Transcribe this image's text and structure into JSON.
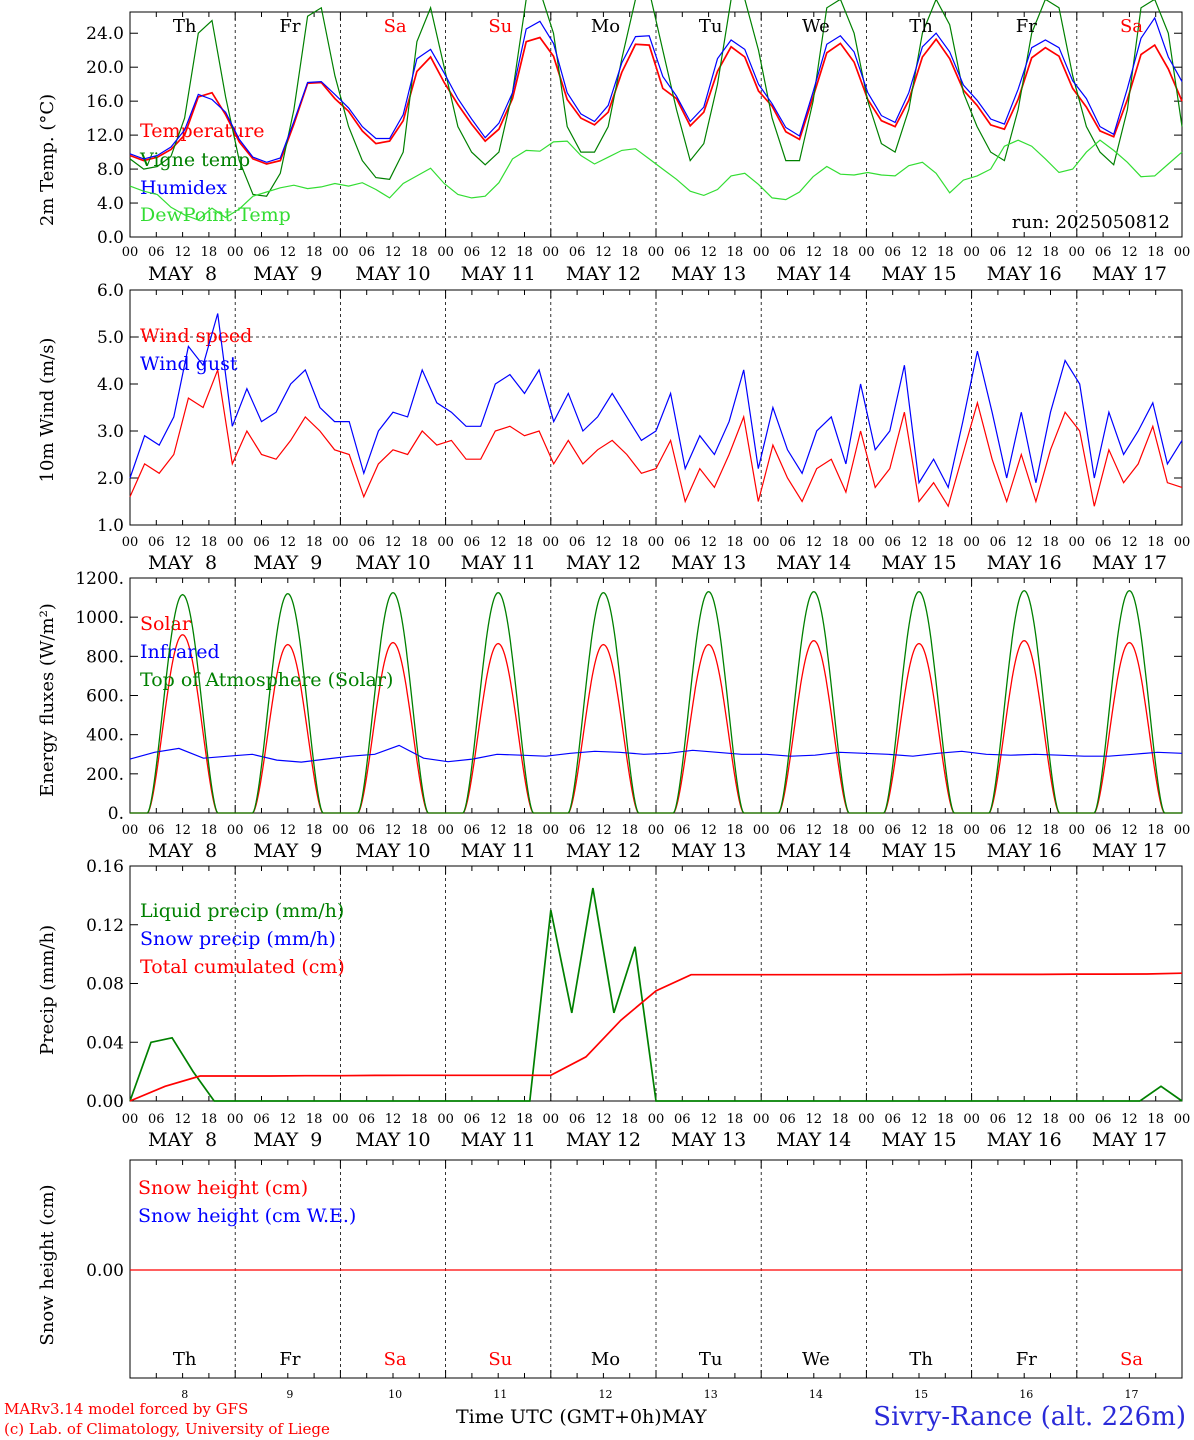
{
  "colors": {
    "red": "#ff0000",
    "blue": "#0000ff",
    "green": "#008000",
    "lightgreen": "#33dd33",
    "black": "#000000"
  },
  "time_axis": {
    "hour_ticks": [
      "00",
      "06",
      "12",
      "18"
    ],
    "date_labels": [
      "MAY  8",
      "MAY  9",
      "MAY 10",
      "MAY 11",
      "MAY 12",
      "MAY 13",
      "MAY 14",
      "MAY 15",
      "MAY 16",
      "MAY 17"
    ],
    "day_names": [
      "Th",
      "Fr",
      "Sa",
      "Su",
      "Mo",
      "Tu",
      "We",
      "Th",
      "Fr",
      "Sa"
    ],
    "day_name_colors": [
      "#000000",
      "#000000",
      "#ff0000",
      "#ff0000",
      "#000000",
      "#000000",
      "#000000",
      "#000000",
      "#000000",
      "#ff0000"
    ],
    "day_numbers": [
      "8",
      "9",
      "10",
      "11",
      "12",
      "13",
      "14",
      "15",
      "16",
      "17"
    ],
    "xlabel": "Time UTC (GMT+0h)",
    "month": "MAY"
  },
  "chart_data": [
    {
      "type": "line",
      "ylabel": "2m Temp. (°C)",
      "ylim": [
        0,
        26.5
      ],
      "yticks": [
        "0.0",
        "4.0",
        "8.0",
        "12.0",
        "16.0",
        "20.0",
        "24.0"
      ],
      "annotation": "run: 2025050812",
      "series": [
        {
          "name": "Temperature",
          "color": "#ff0000",
          "y": [
            9.6,
            9,
            9.4,
            10.3,
            12,
            16.5,
            17,
            14.4,
            11.2,
            9.2,
            8.6,
            9,
            13.3,
            18.1,
            18.2,
            16.3,
            14.8,
            12.5,
            11,
            11.3,
            13.7,
            19.5,
            21.2,
            18.2,
            15.6,
            13.3,
            11.3,
            12.7,
            16.3,
            23,
            23.5,
            21.3,
            16.2,
            14,
            13.2,
            14.7,
            19.4,
            22.7,
            22.6,
            17.5,
            16.3,
            13.1,
            14.7,
            19.5,
            22.4,
            21.2,
            17.2,
            15.4,
            12.4,
            11.5,
            16.5,
            21.7,
            22.8,
            20.6,
            16.2,
            13.7,
            13,
            16.1,
            21.2,
            23.3,
            21,
            17.3,
            15.5,
            13.2,
            12.7,
            16.2,
            21.1,
            22.3,
            21.3,
            17.5,
            15.3,
            12.5,
            11.8,
            16.2,
            21.5,
            22.6,
            19.8,
            16
          ]
        },
        {
          "name": "Vigne temp",
          "color": "#008000",
          "y": [
            9.2,
            8,
            8.3,
            9.5,
            14,
            24,
            25.5,
            16.5,
            9,
            5,
            4.8,
            7.5,
            15,
            26,
            27,
            19,
            13,
            9,
            7,
            6.8,
            10,
            23,
            27,
            20,
            13,
            10,
            8.5,
            10,
            17,
            28,
            29,
            24,
            13,
            10,
            10,
            13,
            21,
            28,
            29,
            22,
            15,
            9,
            11,
            18,
            28,
            28,
            22,
            14,
            9,
            9,
            16,
            27,
            28,
            24,
            16,
            11,
            10,
            15,
            24,
            28,
            25,
            17,
            13,
            10,
            9,
            15,
            24,
            28,
            27,
            19,
            13,
            10,
            8.5,
            15,
            27,
            28,
            24,
            13
          ]
        },
        {
          "name": "Humidex",
          "color": "#0000ff",
          "y": [
            9.8,
            9.2,
            9.6,
            10.6,
            12.6,
            16.8,
            16.2,
            14.7,
            11.5,
            9.4,
            8.8,
            9.3,
            13.6,
            18.2,
            18.3,
            16.8,
            15.2,
            13,
            11.6,
            11.6,
            14.4,
            21,
            22.1,
            19.3,
            16.3,
            13.9,
            11.7,
            13.4,
            17,
            24.5,
            25.4,
            22.8,
            17,
            14.5,
            13.6,
            15.5,
            20.5,
            23.6,
            23.7,
            18.9,
            16.6,
            13.6,
            15.3,
            21,
            23.2,
            22.1,
            18,
            15.7,
            12.9,
            11.9,
            17.1,
            22.7,
            23.7,
            21.8,
            17,
            14.3,
            13.5,
            17,
            22.4,
            24,
            21.8,
            17.9,
            16.1,
            13.9,
            13.3,
            17.4,
            22.3,
            23.2,
            22.3,
            18.4,
            16.3,
            13,
            12.1,
            17.5,
            23.4,
            25.8,
            21.2,
            18.3
          ]
        },
        {
          "name": "DewPoint Temp",
          "color": "#33dd33",
          "y": [
            6,
            5.4,
            5,
            3.5,
            2.6,
            2,
            3.4,
            2.3,
            3.3,
            4.8,
            5.3,
            5.8,
            6.1,
            5.7,
            5.9,
            6.3,
            6,
            6.4,
            5.6,
            4.6,
            6.3,
            7.2,
            8.1,
            6.3,
            5,
            4.6,
            4.8,
            6.4,
            9.2,
            10.2,
            10.1,
            11.2,
            11.3,
            9.6,
            8.6,
            9.4,
            10.2,
            10.4,
            9.2,
            8,
            6.8,
            5.4,
            4.9,
            5.6,
            7.2,
            7.5,
            6.2,
            4.6,
            4.4,
            5.3,
            7.1,
            8.3,
            7.4,
            7.3,
            7.6,
            7.3,
            7.2,
            8.4,
            8.8,
            7.5,
            5.2,
            6.7,
            7.2,
            8,
            10.7,
            11.4,
            10.7,
            9.2,
            7.6,
            8,
            10,
            11.4,
            10.2,
            8.8,
            7.1,
            7.2,
            8.6,
            10
          ]
        }
      ]
    },
    {
      "type": "line",
      "ylabel": "10m Wind (m/s)",
      "ylim": [
        1,
        6
      ],
      "yticks": [
        "1.0",
        "2.0",
        "3.0",
        "4.0",
        "5.0",
        "6.0"
      ],
      "dashed_ref": 5,
      "series": [
        {
          "name": "Wind speed",
          "color": "#ff0000",
          "y": [
            1.6,
            2.3,
            2.1,
            2.5,
            3.7,
            3.5,
            4.3,
            2.3,
            3,
            2.5,
            2.4,
            2.8,
            3.3,
            3,
            2.6,
            2.5,
            1.6,
            2.3,
            2.6,
            2.5,
            3,
            2.7,
            2.8,
            2.4,
            2.4,
            3,
            3.1,
            2.9,
            3,
            2.3,
            2.8,
            2.3,
            2.6,
            2.8,
            2.5,
            2.1,
            2.2,
            2.8,
            1.5,
            2.2,
            1.8,
            2.5,
            3.3,
            1.5,
            2.7,
            2,
            1.5,
            2.2,
            2.4,
            1.7,
            3,
            1.8,
            2.2,
            3.4,
            1.5,
            1.9,
            1.4,
            2.5,
            3.6,
            2.4,
            1.5,
            2.5,
            1.5,
            2.6,
            3.4,
            3,
            1.4,
            2.6,
            1.9,
            2.3,
            3.1,
            1.9,
            1.8
          ]
        },
        {
          "name": "Wind gust",
          "color": "#0000ff",
          "y": [
            2,
            2.9,
            2.7,
            3.3,
            4.8,
            4.4,
            5.5,
            3.1,
            3.9,
            3.2,
            3.4,
            4,
            4.3,
            3.5,
            3.2,
            3.2,
            2.1,
            3,
            3.4,
            3.3,
            4.3,
            3.6,
            3.4,
            3.1,
            3.1,
            4,
            4.2,
            3.8,
            4.3,
            3.2,
            3.8,
            3,
            3.3,
            3.8,
            3.3,
            2.8,
            3,
            3.8,
            2.2,
            2.9,
            2.5,
            3.2,
            4.3,
            2.2,
            3.5,
            2.6,
            2.1,
            3,
            3.3,
            2.3,
            4,
            2.6,
            3,
            4.4,
            1.9,
            2.4,
            1.8,
            3.2,
            4.7,
            3.4,
            2,
            3.4,
            1.9,
            3.4,
            4.5,
            4,
            2,
            3.4,
            2.5,
            3,
            3.6,
            2.3,
            2.8
          ]
        }
      ]
    },
    {
      "type": "line",
      "ylabel": "Energy fluxes (W/m²)",
      "ylim": [
        0,
        1200
      ],
      "yticks": [
        "0.",
        "200.",
        "400.",
        "600.",
        "800.",
        "1000.",
        "1200."
      ],
      "series": [
        {
          "name": "Solar",
          "color": "#ff0000",
          "peaks": [
            910,
            860,
            870,
            865,
            860,
            860,
            880,
            865,
            880,
            870
          ]
        },
        {
          "name": "Infrared",
          "color": "#0000ff",
          "y": [
            275,
            310,
            330,
            280,
            290,
            300,
            270,
            260,
            275,
            290,
            300,
            345,
            280,
            262,
            275,
            300,
            295,
            290,
            305,
            315,
            310,
            300,
            305,
            320,
            310,
            300,
            300,
            290,
            295,
            310,
            305,
            300,
            290,
            305,
            315,
            300,
            295,
            300,
            295,
            290,
            290,
            300,
            310,
            305
          ]
        },
        {
          "name": "Top of Atmosphere (Solar)",
          "color": "#008000",
          "peaks": [
            1115,
            1120,
            1125,
            1125,
            1125,
            1130,
            1130,
            1130,
            1135,
            1135
          ]
        }
      ]
    },
    {
      "type": "line",
      "ylabel": "Precip (mm/h)",
      "ylim": [
        0,
        0.16
      ],
      "yticks": [
        "0.00",
        "0.04",
        "0.08",
        "0.12",
        "0.16"
      ],
      "series": [
        {
          "name": "Liquid precip (mm/h)",
          "color": "#008000",
          "y": [
            0,
            0.04,
            0.043,
            0.02,
            0,
            0,
            0,
            0,
            0,
            0,
            0,
            0,
            0,
            0,
            0,
            0,
            0,
            0,
            0,
            0,
            0.13,
            0.06,
            0.145,
            0.06,
            0.105,
            0,
            0,
            0,
            0,
            0,
            0,
            0,
            0,
            0,
            0,
            0,
            0,
            0,
            0,
            0,
            0,
            0,
            0,
            0,
            0,
            0,
            0,
            0,
            0,
            0.01,
            0
          ]
        },
        {
          "name": "Snow precip (mm/h)",
          "color": "#0000ff",
          "y": []
        },
        {
          "name": "Total cumulated (cm)",
          "color": "#ff0000",
          "y": [
            0,
            0.01,
            0.017,
            0.017,
            0.017,
            0.0172,
            0.0172,
            0.0174,
            0.0175,
            0.0175,
            0.0175,
            0.0175,
            0.0175,
            0.03,
            0.055,
            0.075,
            0.086,
            0.086,
            0.086,
            0.086,
            0.086,
            0.086,
            0.086,
            0.086,
            0.0862,
            0.0862,
            0.0862,
            0.0864,
            0.0864,
            0.0865,
            0.087
          ]
        }
      ]
    },
    {
      "type": "line",
      "ylabel": "Snow height (cm)",
      "yticks": [
        "0.00"
      ],
      "series": [
        {
          "name": "Snow height (cm)",
          "color": "#ff0000",
          "y": [
            0,
            0
          ]
        },
        {
          "name": "Snow height (cm W.E.)",
          "color": "#0000ff",
          "y": []
        }
      ]
    }
  ],
  "footer": {
    "credit1": "MARv3.14 model forced by GFS",
    "credit2": "(c) Lab. of Climatology, University of Liege",
    "location": "Sivry-Rance (alt. 226m)"
  }
}
